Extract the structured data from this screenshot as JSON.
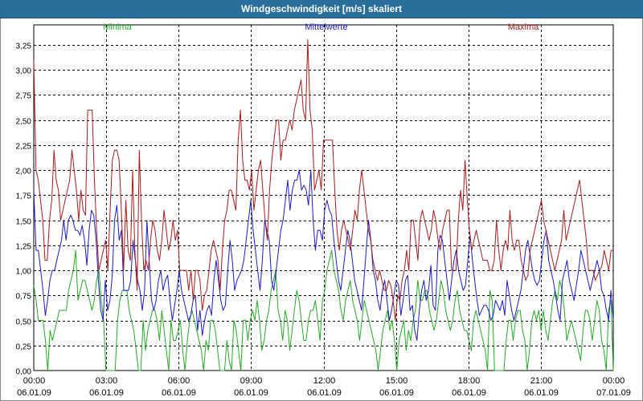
{
  "window": {
    "title": "Windgeschwindigkeit [m/s] skaliert"
  },
  "colors": {
    "titlebar": "#2a6f9c",
    "minima": "#22aa22",
    "mittel": "#1a1acc",
    "maxima": "#aa1a1a",
    "grid": "#000000"
  },
  "chart_data": {
    "type": "line",
    "title": "Windgeschwindigkeit [m/s] skaliert",
    "xlabel": "",
    "ylabel": "",
    "ylim": [
      0,
      3.45
    ],
    "grid": true,
    "legend_position": "top",
    "x_start": "06.01.09 00:00",
    "x_end": "07.01.09 00:00",
    "x_interval_minutes": 10,
    "yticks": [
      "0,00",
      "0,25",
      "0,50",
      "0,75",
      "1,00",
      "1,25",
      "1,50",
      "1,75",
      "2,00",
      "2,25",
      "2,50",
      "2,75",
      "3,00",
      "3,25"
    ],
    "xticks": [
      {
        "time": "00:00",
        "date": "06.01.09"
      },
      {
        "time": "03:00",
        "date": "06.01.09"
      },
      {
        "time": "06:00",
        "date": "06.01.09"
      },
      {
        "time": "09:00",
        "date": "06.01.09"
      },
      {
        "time": "12:00",
        "date": "06.01.09"
      },
      {
        "time": "15:00",
        "date": "06.01.09"
      },
      {
        "time": "18:00",
        "date": "06.01.09"
      },
      {
        "time": "21:00",
        "date": "06.01.09"
      },
      {
        "time": "00:00",
        "date": "07.01.09"
      }
    ],
    "series": [
      {
        "name": "Minima",
        "color": "#22aa22",
        "values": [
          0.85,
          0.7,
          0.5,
          0.5,
          0.5,
          0.3,
          0.0,
          0.4,
          0.3,
          0.4,
          0.5,
          0.6,
          0.6,
          0.6,
          0.6,
          0.8,
          0.9,
          1.0,
          1.2,
          0.7,
          0.8,
          0.9,
          0.9,
          0.8,
          0.7,
          0.6,
          0.7,
          0.9,
          1.0,
          0.7,
          0.5,
          0.0,
          0.0,
          0.0,
          0.0,
          0.0,
          0.5,
          0.7,
          0.8,
          0.8,
          0.8,
          0.6,
          0.5,
          0.4,
          0.2,
          0.0,
          0.0,
          0.5,
          0.2,
          0.4,
          0.5,
          0.6,
          0.6,
          0.5,
          0.3,
          0.6,
          0.4,
          0.2,
          0.0,
          0.5,
          0.3,
          0.3,
          0.4,
          0.5,
          0.2,
          0.0,
          0.3,
          0.5,
          0.6,
          0.5,
          0.4,
          0.3,
          0.2,
          0.0,
          0.3,
          0.2,
          0.5,
          0.5,
          0.4,
          0.2,
          0.0,
          0.0,
          0.0,
          0.3,
          0.1,
          0.0,
          0.5,
          0.4,
          0.2,
          0.0,
          0.5,
          0.5,
          0.3,
          0.5,
          0.6,
          0.5,
          0.7,
          0.5,
          0.2,
          0.3,
          0.5,
          0.6,
          0.8,
          0.9,
          1.0,
          0.6,
          0.5,
          0.3,
          0.6,
          0.5,
          0.2,
          0.4,
          0.6,
          0.8,
          0.7,
          0.5,
          0.3,
          0.3,
          0.5,
          0.6,
          0.6,
          0.7,
          0.5,
          0.3,
          0.7,
          0.8,
          1.0,
          1.1,
          1.2,
          1.0,
          0.9,
          0.8,
          0.6,
          0.5,
          0.7,
          0.8,
          0.9,
          0.7,
          0.6,
          0.5,
          0.3,
          0.5,
          0.7,
          0.6,
          0.5,
          0.4,
          0.3,
          0.2,
          0.0,
          0.2,
          0.4,
          0.5,
          0.6,
          0.4,
          0.5,
          0.3,
          0.0,
          0.3,
          0.4,
          0.5,
          0.2,
          0.4,
          0.3,
          0.5,
          0.6,
          0.9,
          0.7,
          0.7,
          0.8,
          0.8,
          0.6,
          0.5,
          0.4,
          0.5,
          0.7,
          0.9,
          0.8,
          0.6,
          0.5,
          0.4,
          0.5,
          0.7,
          0.8,
          0.6,
          0.5,
          0.4,
          0.4,
          0.3,
          0.2,
          0.5,
          0.6,
          0.5,
          0.4,
          0.3,
          0.2,
          0.0,
          0.8,
          0.7,
          0.0,
          0.0,
          0.0,
          0.0,
          0.0,
          0.3,
          0.5,
          0.5,
          0.3,
          0.5,
          0.6,
          0.6,
          0.4,
          0.3,
          0.0,
          0.2,
          0.5,
          0.6,
          0.5,
          0.6,
          0.4,
          0.6,
          0.4,
          0.3,
          0.5,
          0.7,
          0.8,
          0.7,
          0.9,
          0.8,
          0.6,
          0.3,
          0.4,
          0.5,
          0.4,
          0.3,
          0.2,
          0.1,
          0.4,
          0.6,
          0.6,
          0.5,
          0.3,
          0.5,
          0.7,
          0.6,
          0.3,
          0.2,
          0.0,
          0.6,
          0.7,
          0.0
        ]
      },
      {
        "name": "Mittelwerte",
        "color": "#1a1acc",
        "values": [
          1.8,
          1.2,
          1.2,
          1.0,
          0.8,
          0.55,
          0.7,
          0.9,
          1.0,
          1.0,
          1.1,
          1.2,
          1.3,
          1.5,
          1.3,
          1.5,
          1.55,
          1.5,
          1.4,
          1.4,
          1.35,
          1.45,
          1.3,
          1.05,
          1.4,
          1.6,
          1.55,
          1.3,
          0.9,
          0.6,
          0.5,
          0.9,
          0.6,
          0.7,
          0.95,
          1.5,
          1.65,
          1.3,
          1.4,
          0.8,
          0.8,
          0.8,
          0.9,
          1.3,
          1.1,
          0.9,
          0.8,
          0.6,
          0.8,
          1.5,
          1.1,
          0.7,
          0.6,
          0.7,
          0.9,
          1.0,
          0.8,
          0.9,
          0.95,
          0.7,
          0.5,
          0.65,
          0.8,
          1.0,
          0.8,
          0.7,
          0.6,
          0.5,
          0.55,
          0.7,
          0.75,
          0.4,
          0.6,
          0.35,
          0.5,
          0.6,
          0.65,
          0.55,
          0.9,
          1.1,
          0.9,
          0.7,
          0.6,
          0.65,
          1.0,
          1.3,
          1.1,
          0.8,
          0.9,
          0.95,
          1.0,
          1.1,
          1.3,
          1.5,
          1.7,
          1.4,
          1.2,
          1.0,
          0.8,
          1.1,
          1.5,
          1.4,
          1.3,
          0.9,
          0.8,
          1.0,
          1.2,
          1.4,
          1.5,
          1.7,
          1.9,
          1.6,
          1.8,
          1.9,
          1.9,
          2.0,
          1.8,
          1.85,
          1.8,
          1.65,
          2.0,
          1.5,
          1.2,
          1.4,
          1.4,
          1.3,
          1.6,
          1.7,
          1.6,
          1.55,
          1.3,
          1.1,
          0.9,
          0.8,
          1.0,
          1.2,
          1.4,
          1.3,
          1.1,
          0.9,
          0.8,
          0.7,
          0.6,
          0.9,
          1.2,
          1.5,
          1.3,
          1.0,
          0.9,
          0.7,
          0.6,
          0.8,
          0.9,
          0.7,
          0.5,
          0.6,
          0.75,
          0.9,
          0.85,
          0.55,
          0.7,
          0.9,
          0.95,
          0.6,
          0.65,
          0.4,
          0.3,
          0.6,
          0.8,
          0.9,
          0.7,
          0.8,
          1.05,
          0.65,
          0.6,
          1.2,
          1.35,
          1.3,
          1.1,
          0.9,
          0.7,
          0.9,
          1.1,
          1.2,
          1.0,
          0.9,
          0.8,
          0.85,
          1.1,
          1.35,
          1.1,
          0.9,
          0.7,
          0.55,
          0.6,
          0.65,
          0.65,
          0.6,
          0.5,
          0.55,
          0.7,
          0.65,
          0.6,
          0.7,
          0.55,
          0.9,
          0.75,
          0.6,
          0.5,
          0.6,
          0.7,
          0.8,
          1.0,
          1.2,
          1.3,
          1.15,
          1.0,
          0.9,
          0.85,
          0.9,
          1.1,
          1.3,
          1.4,
          1.1,
          1.0,
          0.9,
          0.75,
          0.6,
          0.5,
          0.9,
          1.0,
          1.1,
          0.9,
          0.8,
          0.7,
          0.85,
          1.0,
          1.2,
          1.1,
          1.0,
          0.9,
          0.8,
          0.9,
          1.0,
          1.1,
          1.0,
          0.8,
          0.75,
          0.6,
          0.5,
          0.8,
          0.5
        ]
      },
      {
        "name": "Maxima",
        "color": "#aa1a1a",
        "values": [
          3.1,
          2.0,
          1.9,
          1.7,
          1.5,
          1.1,
          1.1,
          1.5,
          1.7,
          2.2,
          1.9,
          1.8,
          1.5,
          1.6,
          1.7,
          1.8,
          1.9,
          2.2,
          2.0,
          1.8,
          1.5,
          1.8,
          1.6,
          1.55,
          2.6,
          2.6,
          2.6,
          1.9,
          1.4,
          1.0,
          1.1,
          1.2,
          1.3,
          1.0,
          1.6,
          2.1,
          2.2,
          2.2,
          2.1,
          1.6,
          1.0,
          1.7,
          1.2,
          1.1,
          2.0,
          1.2,
          0.8,
          2.2,
          1.5,
          1.0,
          1.1,
          1.0,
          1.3,
          1.5,
          1.4,
          1.2,
          1.1,
          1.3,
          1.6,
          1.4,
          1.2,
          1.3,
          1.5,
          1.3,
          1.4,
          1.0,
          1.0,
          1.0,
          1.0,
          0.8,
          1.0,
          0.7,
          1.0,
          1.0,
          0.9,
          0.6,
          0.75,
          0.8,
          1.0,
          1.2,
          1.3,
          1.2,
          1.1,
          0.8,
          1.2,
          1.5,
          1.6,
          1.8,
          1.8,
          1.7,
          1.6,
          2.3,
          2.6,
          2.1,
          1.9,
          1.9,
          1.8,
          2.0,
          1.6,
          1.8,
          2.0,
          2.1,
          1.8,
          1.5,
          1.3,
          1.8,
          2.1,
          2.3,
          2.5,
          2.5,
          2.1,
          2.3,
          2.3,
          2.4,
          2.5,
          2.4,
          2.6,
          2.7,
          2.8,
          2.9,
          2.6,
          2.5,
          3.3,
          2.6,
          2.4,
          1.8,
          1.9,
          2.0,
          1.8,
          2.3,
          2.3,
          2.3,
          2.3,
          2.3,
          1.8,
          1.4,
          1.2,
          1.4,
          1.5,
          1.4,
          1.3,
          1.2,
          1.4,
          1.6,
          1.5,
          1.8,
          2.0,
          1.8,
          1.6,
          1.4,
          1.3,
          1.1,
          1.0,
          0.9,
          1.0,
          0.9,
          0.8,
          0.8,
          0.9,
          0.85,
          0.7,
          0.5,
          0.75,
          0.7,
          0.9,
          1.0,
          1.2,
          1.0,
          1.5,
          1.5,
          1.3,
          1.1,
          1.5,
          1.6,
          1.5,
          1.4,
          1.3,
          1.4,
          1.6,
          1.5,
          1.3,
          1.2,
          1.4,
          1.5,
          1.6,
          1.6,
          1.0,
          1.0,
          1.0,
          1.5,
          1.8,
          1.6,
          2.1,
          1.7,
          1.4,
          1.2,
          1.3,
          1.4,
          1.3,
          1.2,
          1.1,
          1.1,
          1.1,
          1.0,
          1.0,
          1.1,
          1.5,
          1.2,
          1.0,
          1.2,
          1.3,
          1.2,
          1.6,
          1.3,
          1.2,
          1.3,
          1.3,
          1.1,
          1.0,
          0.9,
          0.95,
          1.2,
          1.3,
          1.4,
          1.5,
          1.6,
          1.7,
          1.5,
          1.4,
          1.3,
          1.2,
          1.1,
          1.0,
          1.1,
          1.2,
          1.3,
          1.6,
          1.3,
          1.4,
          1.5,
          1.6,
          1.7,
          1.8,
          1.9,
          1.7,
          1.5,
          1.3,
          1.0,
          1.0,
          1.0,
          0.9,
          0.95,
          1.0,
          1.05,
          1.2,
          1.1,
          1.0,
          1.2,
          1.2
        ]
      }
    ]
  }
}
